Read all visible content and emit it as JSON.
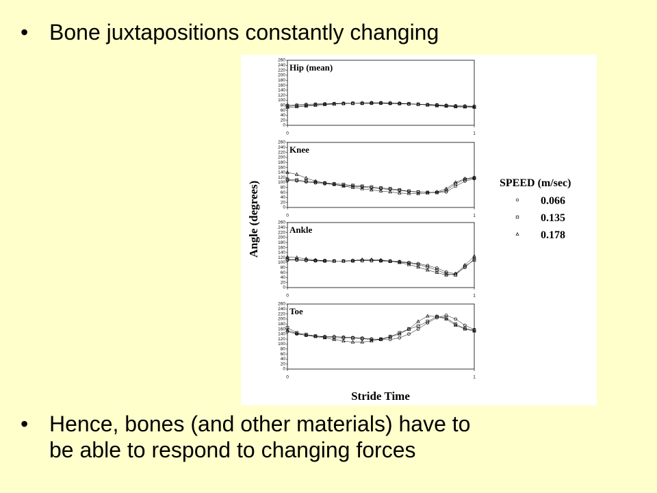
{
  "bullets": [
    "Bone juxtapositions constantly changing",
    "Hence, bones (and other materials) have to be able to respond to changing forces"
  ],
  "ylabel": "Angle (degrees)",
  "xlabel": "Stride Time",
  "legend": {
    "title": "SPEED (m/sec)",
    "entries": [
      {
        "name": "0.066",
        "marker": "circle"
      },
      {
        "name": "0.135",
        "marker": "square"
      },
      {
        "name": "0.178",
        "marker": "triangle"
      }
    ]
  },
  "chart_data": [
    {
      "type": "line",
      "title": "Hip (mean)",
      "x": [
        0,
        0.05,
        0.1,
        0.15,
        0.2,
        0.25,
        0.3,
        0.35,
        0.4,
        0.45,
        0.5,
        0.55,
        0.6,
        0.65,
        0.7,
        0.75,
        0.8,
        0.85,
        0.9,
        0.95,
        1
      ],
      "xlim": [
        0,
        1
      ],
      "xticks": [
        0,
        1
      ],
      "ylim": [
        0,
        260
      ],
      "yticks": [
        0,
        20,
        40,
        60,
        80,
        100,
        120,
        140,
        160,
        180,
        200,
        220,
        240,
        260
      ],
      "series": [
        {
          "values": [
            80,
            82,
            84,
            85,
            86,
            87,
            88,
            88,
            88,
            88,
            88,
            87,
            86,
            85,
            84,
            83,
            82,
            80,
            78,
            77,
            76
          ]
        },
        {
          "values": [
            76,
            78,
            80,
            82,
            84,
            86,
            87,
            88,
            88,
            89,
            89,
            88,
            87,
            86,
            84,
            82,
            80,
            78,
            76,
            75,
            74
          ]
        },
        {
          "values": [
            72,
            74,
            77,
            80,
            83,
            85,
            87,
            88,
            89,
            90,
            90,
            89,
            88,
            86,
            84,
            81,
            78,
            76,
            74,
            73,
            72
          ]
        }
      ]
    },
    {
      "type": "line",
      "title": "Knee",
      "x": [
        0,
        0.05,
        0.1,
        0.15,
        0.2,
        0.25,
        0.3,
        0.35,
        0.4,
        0.45,
        0.5,
        0.55,
        0.6,
        0.65,
        0.7,
        0.75,
        0.8,
        0.85,
        0.9,
        0.95,
        1
      ],
      "xlim": [
        0,
        1
      ],
      "xticks": [
        0,
        1
      ],
      "ylim": [
        0,
        260
      ],
      "yticks": [
        0,
        20,
        40,
        60,
        80,
        100,
        120,
        140,
        160,
        180,
        200,
        220,
        240,
        260
      ],
      "series": [
        {
          "values": [
            108,
            106,
            102,
            98,
            95,
            92,
            88,
            85,
            82,
            78,
            75,
            72,
            68,
            64,
            62,
            60,
            60,
            62,
            85,
            105,
            115
          ]
        },
        {
          "values": [
            112,
            110,
            105,
            102,
            98,
            95,
            92,
            88,
            85,
            82,
            78,
            75,
            70,
            65,
            62,
            60,
            60,
            68,
            95,
            112,
            118
          ]
        },
        {
          "values": [
            140,
            132,
            118,
            105,
            98,
            92,
            85,
            80,
            75,
            70,
            66,
            62,
            58,
            56,
            55,
            58,
            62,
            75,
            100,
            115,
            120
          ]
        }
      ]
    },
    {
      "type": "line",
      "title": "Ankle",
      "x": [
        0,
        0.05,
        0.1,
        0.15,
        0.2,
        0.25,
        0.3,
        0.35,
        0.4,
        0.45,
        0.5,
        0.55,
        0.6,
        0.65,
        0.7,
        0.75,
        0.8,
        0.85,
        0.9,
        0.95,
        1
      ],
      "xlim": [
        0,
        1
      ],
      "xticks": [
        0,
        1
      ],
      "ylim": [
        0,
        260
      ],
      "yticks": [
        0,
        20,
        40,
        60,
        80,
        100,
        120,
        140,
        160,
        180,
        200,
        220,
        240,
        260
      ],
      "series": [
        {
          "values": [
            110,
            110,
            108,
            107,
            106,
            106,
            106,
            107,
            108,
            108,
            108,
            106,
            104,
            100,
            96,
            88,
            78,
            62,
            55,
            80,
            115
          ]
        },
        {
          "values": [
            112,
            112,
            110,
            108,
            107,
            106,
            106,
            107,
            108,
            108,
            107,
            105,
            102,
            98,
            92,
            82,
            70,
            55,
            50,
            85,
            110
          ]
        },
        {
          "values": [
            122,
            120,
            115,
            110,
            108,
            106,
            106,
            108,
            112,
            112,
            110,
            106,
            100,
            92,
            82,
            70,
            60,
            50,
            55,
            90,
            125
          ]
        }
      ]
    },
    {
      "type": "line",
      "title": "Toe",
      "x": [
        0,
        0.05,
        0.1,
        0.15,
        0.2,
        0.25,
        0.3,
        0.35,
        0.4,
        0.45,
        0.5,
        0.55,
        0.6,
        0.65,
        0.7,
        0.75,
        0.8,
        0.85,
        0.9,
        0.95,
        1
      ],
      "xlim": [
        0,
        1
      ],
      "xticks": [
        0,
        1
      ],
      "ylim": [
        0,
        260
      ],
      "yticks": [
        0,
        20,
        40,
        60,
        80,
        100,
        120,
        140,
        160,
        180,
        200,
        220,
        240,
        260
      ],
      "series": [
        {
          "values": [
            150,
            140,
            135,
            132,
            130,
            130,
            128,
            126,
            124,
            120,
            118,
            118,
            125,
            140,
            160,
            185,
            205,
            215,
            200,
            175,
            158
          ]
        },
        {
          "values": [
            165,
            145,
            138,
            132,
            128,
            126,
            125,
            124,
            122,
            118,
            120,
            130,
            145,
            160,
            172,
            190,
            210,
            205,
            180,
            162,
            155
          ]
        },
        {
          "values": [
            155,
            142,
            135,
            130,
            125,
            118,
            112,
            108,
            108,
            112,
            118,
            128,
            140,
            160,
            190,
            212,
            210,
            200,
            175,
            160,
            152
          ]
        }
      ]
    }
  ]
}
